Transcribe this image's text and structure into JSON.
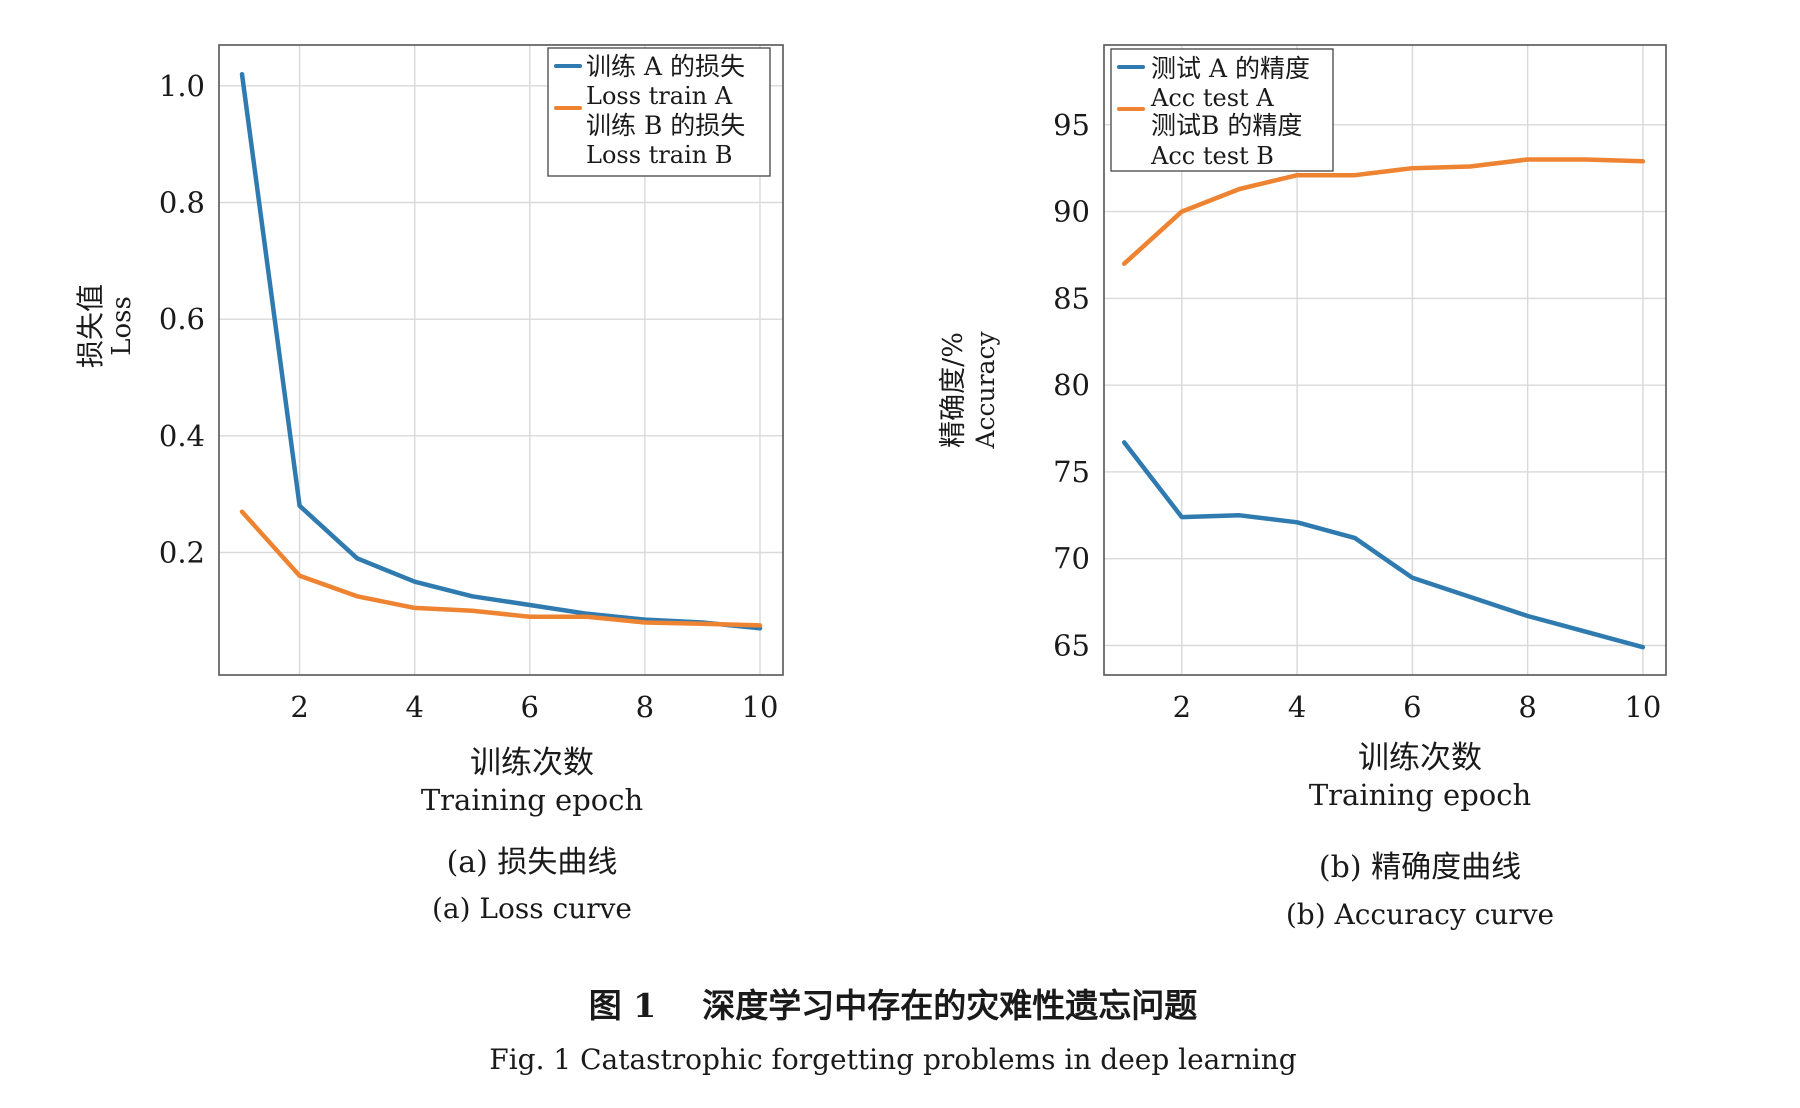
{
  "figure": {
    "caption_zh": "图 1    深度学习中存在的灾难性遗忘问题",
    "caption_en": "Fig. 1 Catastrophic forgetting problems in deep learning"
  },
  "chart_data": [
    {
      "type": "line",
      "subcaption_zh": "(a) 损失曲线",
      "subcaption_en": "(a) Loss curve",
      "xlabel_zh": "训练次数",
      "xlabel_en": "Training epoch",
      "ylabel_zh": "损失值",
      "ylabel_en": "Loss",
      "xlim": [
        0.6,
        10.4
      ],
      "ylim": [
        -0.01,
        1.07
      ],
      "xticks": [
        2,
        4,
        6,
        8,
        10
      ],
      "yticks": [
        0.2,
        0.4,
        0.6,
        0.8,
        1.0
      ],
      "ytick_labels": [
        "0.2",
        "0.4",
        "0.6",
        "0.8",
        "1.0"
      ],
      "grid": true,
      "legend_position": "top-right",
      "x": [
        1,
        2,
        3,
        4,
        5,
        6,
        7,
        8,
        9,
        10
      ],
      "series": [
        {
          "name_zh": "训练 A 的损失",
          "name_en": "Loss train A",
          "color": "#2f7bb0",
          "values": [
            1.02,
            0.28,
            0.19,
            0.15,
            0.125,
            0.11,
            0.095,
            0.085,
            0.08,
            0.07
          ]
        },
        {
          "name_zh": "训练 B 的损失",
          "name_en": "Loss train B",
          "color": "#ee8432",
          "values": [
            0.27,
            0.16,
            0.125,
            0.105,
            0.1,
            0.09,
            0.09,
            0.08,
            0.078,
            0.075
          ]
        }
      ]
    },
    {
      "type": "line",
      "subcaption_zh": "(b) 精确度曲线",
      "subcaption_en": "(b) Accuracy curve",
      "xlabel_zh": "训练次数",
      "xlabel_en": "Training epoch",
      "ylabel_zh": "精确度/%",
      "ylabel_en": "Accuracy",
      "xlim": [
        0.65,
        10.4
      ],
      "ylim": [
        63.3,
        99.6
      ],
      "xticks": [
        2,
        4,
        6,
        8,
        10
      ],
      "yticks": [
        65,
        70,
        75,
        80,
        85,
        90,
        95
      ],
      "ytick_labels": [
        "65",
        "70",
        "75",
        "80",
        "85",
        "90",
        "95"
      ],
      "grid": true,
      "legend_position": "top-left",
      "x": [
        1,
        2,
        3,
        4,
        5,
        6,
        7,
        8,
        9,
        10
      ],
      "series": [
        {
          "name_zh": "测试 A 的精度",
          "name_en": "Acc test A",
          "color": "#2f7bb0",
          "values": [
            76.7,
            72.4,
            72.5,
            72.1,
            71.2,
            68.9,
            67.8,
            66.7,
            65.8,
            64.9
          ]
        },
        {
          "name_zh": "测试B 的精度",
          "name_en": "Acc test B",
          "color": "#ee8432",
          "values": [
            87.0,
            90.0,
            91.3,
            92.1,
            92.1,
            92.5,
            92.6,
            93.0,
            93.0,
            92.9
          ]
        }
      ]
    }
  ]
}
